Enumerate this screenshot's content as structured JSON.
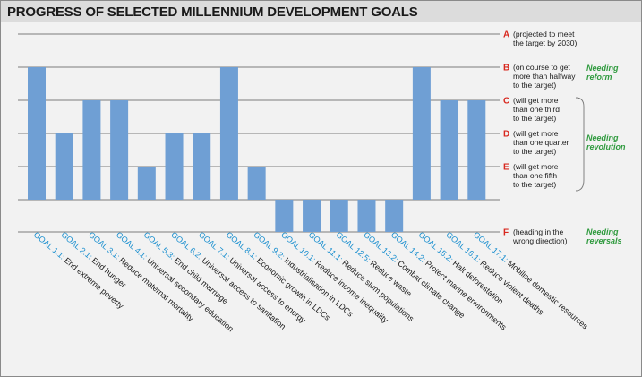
{
  "title": "PROGRESS OF SELECTED MILLENNIUM DEVELOPMENT GOALS",
  "chart_data": {
    "type": "bar",
    "levels": [
      {
        "letter": "A",
        "lines": [
          "(projected to meet",
          "the target by 2030)"
        ]
      },
      {
        "letter": "B",
        "lines": [
          "(on course to get",
          "more than halfway",
          "to the target)"
        ]
      },
      {
        "letter": "C",
        "lines": [
          "(will get more",
          "than one third",
          "to the target)"
        ]
      },
      {
        "letter": "D",
        "lines": [
          "(will get more",
          "than one quarter",
          "to the target)"
        ]
      },
      {
        "letter": "E",
        "lines": [
          "(will get more",
          "than one fifth",
          "to the target)"
        ]
      },
      {
        "letter": "F",
        "lines": [
          "(heading in the",
          "wrong direction)"
        ]
      }
    ],
    "groups": [
      {
        "lines": [
          "Needing",
          "reform"
        ],
        "levels": [
          "B"
        ]
      },
      {
        "lines": [
          "Needing",
          "revolution"
        ],
        "levels": [
          "C",
          "D",
          "E"
        ]
      },
      {
        "lines": [
          "Needing",
          "reversals"
        ],
        "levels": [
          "F"
        ]
      }
    ],
    "categories": [
      {
        "goal": "GOAL 1.1:",
        "desc": "End extreme poverty"
      },
      {
        "goal": "GOAL 2.1:",
        "desc": "End hunger"
      },
      {
        "goal": "GOAL 3.1:",
        "desc": "Reduce maternal mortality"
      },
      {
        "goal": "GOAL 4.1:",
        "desc": "Universal secondary education"
      },
      {
        "goal": "GOAL 5.3:",
        "desc": "End child marriage"
      },
      {
        "goal": "GOAL 6.2:",
        "desc": "Universal access to sanitation"
      },
      {
        "goal": "GOAL 7.1:",
        "desc": "Universal access to energy"
      },
      {
        "goal": "GOAL 8.1:",
        "desc": "Economic growth in LDCs"
      },
      {
        "goal": "GOAL 9.2:",
        "desc": "Industrialisation in LDCs"
      },
      {
        "goal": "GOAL 10.1:",
        "desc": "Reduce income inequality"
      },
      {
        "goal": "GOAL 11.1:",
        "desc": "Reduce slum populations"
      },
      {
        "goal": "GOAL 12.5:",
        "desc": "Reduce waste"
      },
      {
        "goal": "GOAL 13.2:",
        "desc": "Combat climate change"
      },
      {
        "goal": "GOAL 14.2:",
        "desc": "Protect marine environments"
      },
      {
        "goal": "GOAL 15.2:",
        "desc": "Halt deforestation"
      },
      {
        "goal": "GOAL 16.1:",
        "desc": "Reduce violent deaths"
      },
      {
        "goal": "GOAL 17.1:",
        "desc": "Mobilise domestic resources"
      }
    ],
    "values": [
      "B",
      "D",
      "C",
      "C",
      "E",
      "D",
      "D",
      "B",
      "E",
      "F",
      "F",
      "F",
      "F",
      "F",
      "B",
      "C",
      "C"
    ],
    "colors": {
      "bar": "#6f9fd4",
      "level_letter": "#d8281f",
      "group_label": "#2f9a3e",
      "goal_label": "#1a8fcf",
      "gridline": "#555555"
    }
  }
}
